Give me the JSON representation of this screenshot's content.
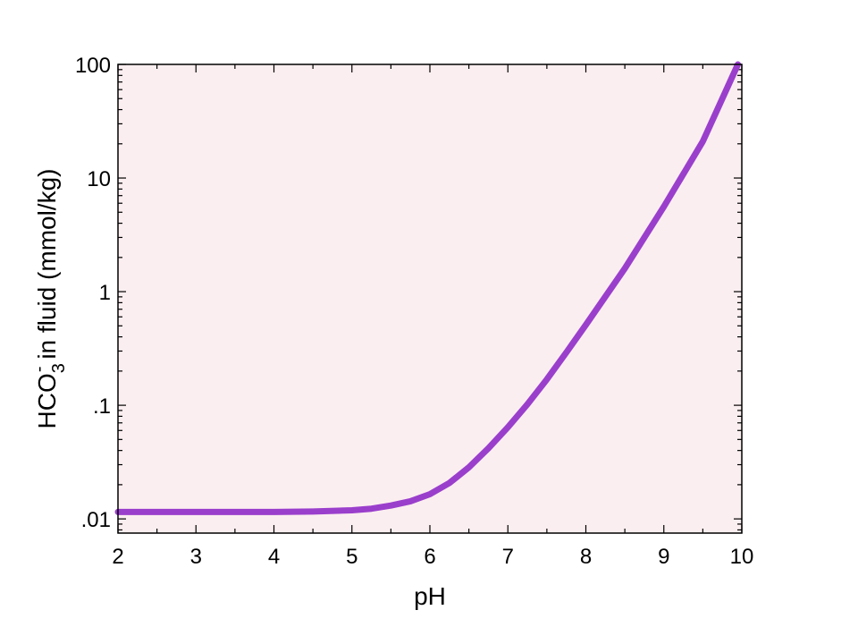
{
  "chart_data": {
    "type": "line",
    "xlabel": "pH",
    "ylabel": {
      "base": "HCO",
      "subscript": "3",
      "superscript": "-",
      "rest": " in fluid (mmol/kg)"
    },
    "x_ticks": [
      "2",
      "3",
      "4",
      "5",
      "6",
      "7",
      "8",
      "9",
      "10"
    ],
    "y_ticks": [
      {
        "value": 0.01,
        "label": ".01"
      },
      {
        "value": 0.1,
        "label": ".1"
      },
      {
        "value": 1,
        "label": "1"
      },
      {
        "value": 10,
        "label": "10"
      },
      {
        "value": 100,
        "label": "100"
      }
    ],
    "xlim": [
      2,
      10
    ],
    "ylim": [
      0.0075,
      100
    ],
    "y_scale": "log",
    "grid": false,
    "plot_background": "#fbeef0",
    "series": [
      {
        "color": "#9a3fcc",
        "x": [
          2.0,
          3.0,
          4.0,
          4.5,
          5.0,
          5.25,
          5.5,
          5.75,
          6.0,
          6.25,
          6.5,
          6.75,
          7.0,
          7.25,
          7.5,
          7.75,
          8.0,
          8.5,
          9.0,
          9.5,
          9.95
        ],
        "y": [
          0.0115,
          0.0115,
          0.0115,
          0.0116,
          0.0119,
          0.0123,
          0.0131,
          0.0143,
          0.0165,
          0.0207,
          0.0284,
          0.0418,
          0.0641,
          0.102,
          0.169,
          0.292,
          0.51,
          1.6,
          5.6,
          21.0,
          100.0
        ]
      }
    ]
  }
}
